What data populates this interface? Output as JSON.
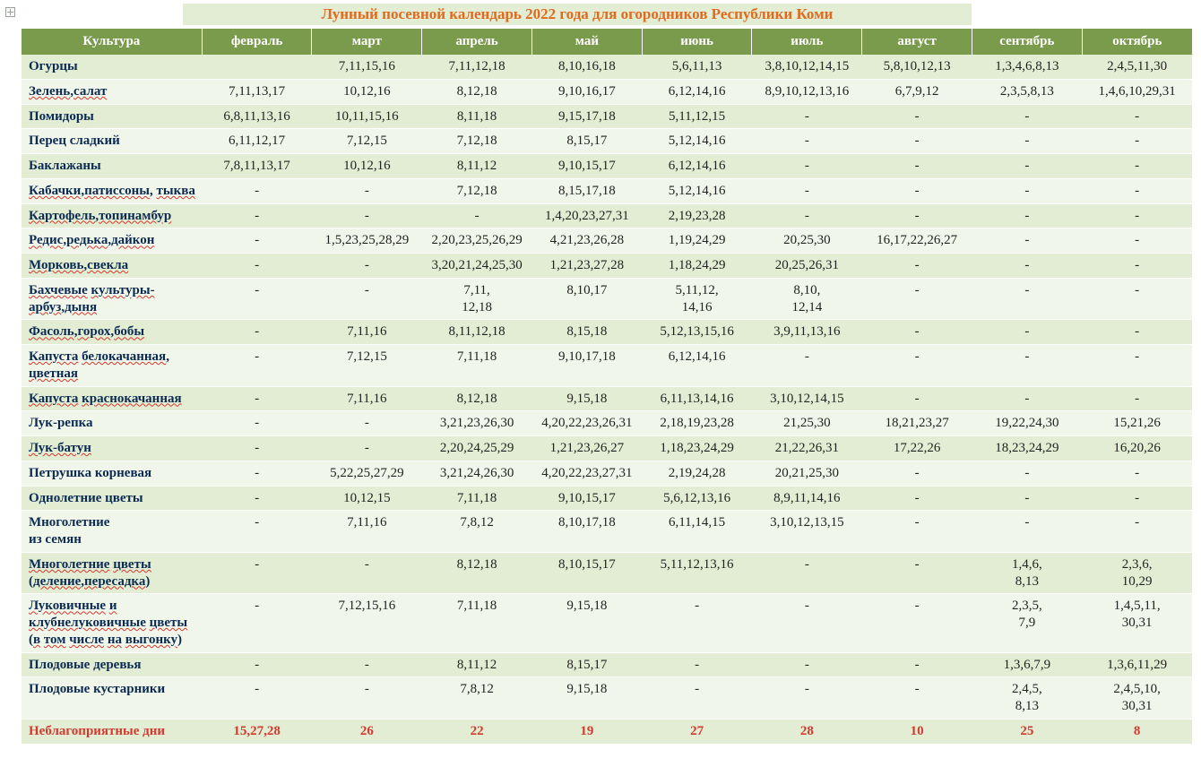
{
  "title": "Лунный посевной календарь 2022 года для огородников Республики Коми",
  "title_color": "#e06a1e",
  "header_bg": "#7a9a4c",
  "row_odd_bg": "#e2edd3",
  "row_even_bg": "#f1f6ea",
  "culture_text_color": "#0b2b53",
  "bad_color": "#d33a2f",
  "font_family": "Times New Roman",
  "font_size_pt": 11,
  "columns": [
    "Культура",
    "февраль",
    "март",
    "апрель",
    "май",
    "июнь",
    "июль",
    "август",
    "сентябрь",
    "октябрь"
  ],
  "rows": [
    {
      "culture": "Огурцы",
      "wavy": false,
      "vals": [
        "",
        "7,11,15,16",
        "7,11,12,18",
        "8,10,16,18",
        "5,6,11,13",
        "3,8,10,12,14,15",
        "5,8,10,12,13",
        "1,3,4,6,8,13",
        "2,4,5,11,30"
      ]
    },
    {
      "culture": "Зелень,салат",
      "wavy": true,
      "vals": [
        "7,11,13,17",
        "10,12,16",
        "8,12,18",
        "9,10,16,17",
        "6,12,14,16",
        "8,9,10,12,13,16",
        "6,7,9,12",
        "2,3,5,8,13",
        "1,4,6,10,29,31"
      ]
    },
    {
      "culture": "Помидоры",
      "wavy": false,
      "vals": [
        "6,8,11,13,16",
        "10,11,15,16",
        "8,11,18",
        "9,15,17,18",
        "5,11,12,15",
        "-",
        "-",
        "-",
        "-"
      ]
    },
    {
      "culture": "Перец сладкий",
      "wavy": false,
      "vals": [
        "6,11,12,17",
        "7,12,15",
        "7,12,18",
        "8,15,17",
        "5,12,14,16",
        "-",
        "-",
        "-",
        "-"
      ]
    },
    {
      "culture": "Баклажаны",
      "wavy": false,
      "vals": [
        "7,8,11,13,17",
        "10,12,16",
        "8,11,12",
        "9,10,15,17",
        "6,12,14,16",
        "-",
        "-",
        "-",
        "-"
      ]
    },
    {
      "culture": "Кабачки,патиссоны, тыква",
      "wavy": true,
      "vals": [
        "-",
        "-",
        "7,12,18",
        "8,15,17,18",
        "5,12,14,16",
        "-",
        "-",
        "-",
        "-"
      ]
    },
    {
      "culture": "Картофель,топинамбур",
      "wavy": true,
      "vals": [
        "-",
        "-",
        "-",
        "1,4,20,23,27,31",
        "2,19,23,28",
        "-",
        "-",
        "-",
        "-"
      ]
    },
    {
      "culture": "Редис,редька,дайкон",
      "wavy": true,
      "vals": [
        "-",
        "1,5,23,25,28,29",
        "2,20,23,25,26,29",
        "4,21,23,26,28",
        "1,19,24,29",
        "20,25,30",
        "16,17,22,26,27",
        "-",
        "-"
      ]
    },
    {
      "culture": "Морковь,свекла",
      "wavy": true,
      "vals": [
        "-",
        "-",
        "3,20,21,24,25,30",
        "1,21,23,27,28",
        "1,18,24,29",
        "20,25,26,31",
        "-",
        "-",
        "-"
      ]
    },
    {
      "culture": "Бахчевые культуры-арбуз,дыня",
      "wavy": true,
      "vals": [
        "-",
        "-",
        "7,11,\n12,18",
        "8,10,17",
        "5,11,12,\n14,16",
        "8,10,\n12,14",
        "-",
        "-",
        "-"
      ]
    },
    {
      "culture": "Фасоль,горох,бобы",
      "wavy": true,
      "vals": [
        "-",
        "7,11,16",
        "8,11,12,18",
        "8,15,18",
        "5,12,13,15,16",
        "3,9,11,13,16",
        "-",
        "-",
        "-"
      ]
    },
    {
      "culture": "Капуста белокачанная, цветная",
      "wavy": true,
      "vals": [
        "-",
        "7,12,15",
        "7,11,18",
        "9,10,17,18",
        "6,12,14,16",
        "-",
        "-",
        "-",
        "-"
      ]
    },
    {
      "culture": "Капуста краснокачанная",
      "wavy": true,
      "vals": [
        "-",
        "7,11,16",
        "8,12,18",
        "9,15,18",
        "6,11,13,14,16",
        "3,10,12,14,15",
        "-",
        "-",
        "-"
      ]
    },
    {
      "culture": "Лук-репка",
      "wavy": false,
      "vals": [
        "-",
        "-",
        "3,21,23,26,30",
        "4,20,22,23,26,31",
        "2,18,19,23,28",
        "21,25,30",
        "18,21,23,27",
        "19,22,24,30",
        "15,21,26"
      ]
    },
    {
      "culture": "Лук-батун",
      "wavy": true,
      "vals": [
        "-",
        "-",
        "2,20,24,25,29",
        "1,21,23,26,27",
        "1,18,23,24,29",
        "21,22,26,31",
        "17,22,26",
        "18,23,24,29",
        "16,20,26"
      ]
    },
    {
      "culture": "Петрушка корневая",
      "wavy": false,
      "vals": [
        "-",
        "5,22,25,27,29",
        "3,21,24,26,30",
        "4,20,22,23,27,31",
        "2,19,24,28",
        "20,21,25,30",
        "-",
        "-",
        "-"
      ]
    },
    {
      "culture": "Однолетние цветы",
      "wavy": false,
      "vals": [
        "-",
        "10,12,15",
        "7,11,18",
        "9,10,15,17",
        "5,6,12,13,16",
        "8,9,11,14,16",
        "-",
        "-",
        "-"
      ]
    },
    {
      "culture": "Многолетние\n из семян",
      "wavy": false,
      "vals": [
        "-",
        "7,11,16",
        "7,8,12",
        "8,10,17,18",
        "6,11,14,15",
        "3,10,12,13,15",
        "-",
        "-",
        "-"
      ]
    },
    {
      "culture": "Многолетние цветы (деление,пересадка)",
      "wavy": true,
      "vals": [
        "-",
        "-",
        "8,12,18",
        "8,10,15,17",
        "5,11,12,13,16",
        "-",
        "-",
        "1,4,6,\n8,13",
        "2,3,6,\n10,29"
      ]
    },
    {
      "culture": "Луковичные и клубнелуковичные цветы (в том числе на выгонку)",
      "wavy": true,
      "vals": [
        "-",
        "7,12,15,16",
        "7,11,18",
        "9,15,18",
        "-",
        "-",
        "-",
        "2,3,5,\n7,9",
        "1,4,5,11,\n30,31"
      ]
    },
    {
      "culture": "Плодовые деревья",
      "wavy": false,
      "vals": [
        "-",
        "-",
        "8,11,12",
        "8,15,17",
        "-",
        "-",
        "-",
        "1,3,6,7,9",
        "1,3,6,11,29"
      ]
    },
    {
      "culture": "Плодовые кустарники",
      "wavy": false,
      "vals": [
        "-",
        "-",
        "7,8,12",
        "9,15,18",
        "-",
        "-",
        "-",
        "2,4,5,\n8,13",
        "2,4,5,10,\n30,31"
      ]
    },
    {
      "culture": "Неблагоприятные дни",
      "wavy": false,
      "bad": true,
      "vals": [
        "15,27,28",
        "26",
        "22",
        "19",
        "27",
        "28",
        "10",
        "25",
        "8"
      ]
    }
  ]
}
